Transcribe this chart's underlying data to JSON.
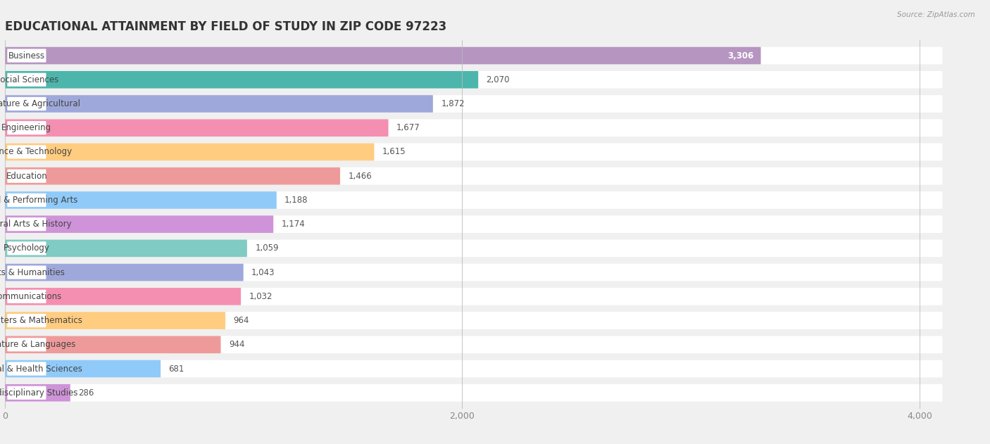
{
  "title": "EDUCATIONAL ATTAINMENT BY FIELD OF STUDY IN ZIP CODE 97223",
  "source": "Source: ZipAtlas.com",
  "categories": [
    "Business",
    "Social Sciences",
    "Bio, Nature & Agricultural",
    "Engineering",
    "Science & Technology",
    "Education",
    "Visual & Performing Arts",
    "Liberal Arts & History",
    "Psychology",
    "Arts & Humanities",
    "Communications",
    "Computers & Mathematics",
    "Literature & Languages",
    "Physical & Health Sciences",
    "Multidisciplinary Studies"
  ],
  "values": [
    3306,
    2070,
    1872,
    1677,
    1615,
    1466,
    1188,
    1174,
    1059,
    1043,
    1032,
    964,
    944,
    681,
    286
  ],
  "bar_colors": [
    "#b695c0",
    "#4db6ac",
    "#9fa8da",
    "#f48fb1",
    "#ffcc80",
    "#ef9a9a",
    "#90caf9",
    "#ce93d8",
    "#80cbc4",
    "#9fa8da",
    "#f48fb1",
    "#ffcc80",
    "#ef9a9a",
    "#90caf9",
    "#ce93d8"
  ],
  "value_label_white": [
    "Business"
  ],
  "xlim": [
    0,
    4200
  ],
  "xticks": [
    0,
    2000,
    4000
  ],
  "background_color": "#f0f0f0",
  "title_fontsize": 12,
  "label_fontsize": 8.5,
  "value_fontsize": 8.5
}
